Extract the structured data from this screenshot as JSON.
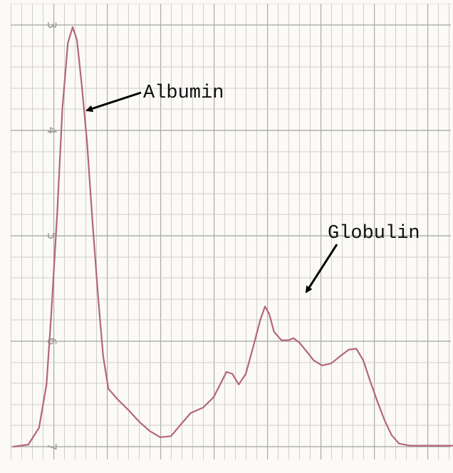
{
  "chart_data": {
    "type": "line",
    "annotations": [
      "Albumin",
      "Globulin"
    ],
    "ylim": [
      2.8,
      7.1
    ],
    "y_inverted": true,
    "yticks": [
      3,
      4,
      5,
      6,
      7
    ],
    "grid": true,
    "xlim": [
      0,
      8.48
    ],
    "series": [
      {
        "color": "#b4657f",
        "x": [
          0.24,
          0.53,
          0.73,
          0.87,
          0.96,
          1.07,
          1.17,
          1.27,
          1.36,
          1.44,
          1.53,
          1.63,
          1.73,
          1.84,
          1.93,
          2.03,
          2.2,
          2.4,
          2.6,
          2.8,
          3.0,
          3.2,
          3.4,
          3.57,
          3.8,
          4.0,
          4.13,
          4.24,
          4.35,
          4.47,
          4.6,
          4.73,
          4.87,
          4.96,
          5.04,
          5.13,
          5.27,
          5.4,
          5.49,
          5.6,
          5.73,
          5.87,
          6.03,
          6.2,
          6.37,
          6.53,
          6.67,
          6.8,
          6.93,
          7.07,
          7.2,
          7.33,
          7.47,
          7.67,
          8.0,
          8.48
        ],
        "values": [
          7.0,
          6.98,
          6.82,
          6.41,
          5.74,
          4.79,
          3.78,
          3.17,
          3.02,
          3.14,
          3.57,
          4.11,
          4.86,
          5.6,
          6.14,
          6.45,
          6.55,
          6.65,
          6.76,
          6.85,
          6.91,
          6.9,
          6.78,
          6.68,
          6.63,
          6.53,
          6.4,
          6.29,
          6.31,
          6.41,
          6.31,
          6.07,
          5.8,
          5.67,
          5.74,
          5.91,
          5.99,
          5.99,
          5.97,
          6.01,
          6.09,
          6.18,
          6.23,
          6.21,
          6.14,
          6.08,
          6.07,
          6.18,
          6.38,
          6.58,
          6.75,
          6.89,
          6.97,
          6.99,
          6.99,
          6.99
        ]
      }
    ]
  }
}
